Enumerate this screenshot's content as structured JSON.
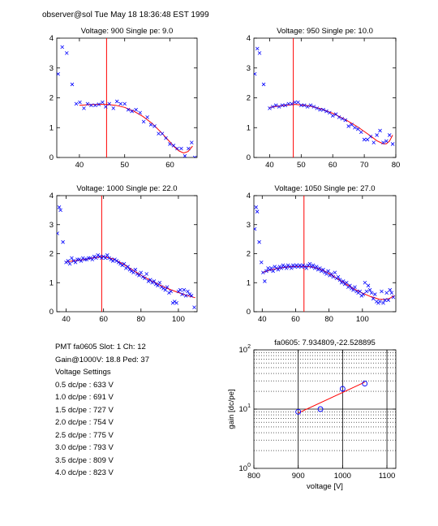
{
  "header": "observer@sol  Tue May 18 18:36:48 EST 1999",
  "info": {
    "pmt_line": "PMT fa0605 Slot: 1  Ch: 12",
    "gain_line": "Gain@1000V: 18.8  Ped: 37",
    "settings_title": "Voltage Settings",
    "settings": [
      "0.5 dc/pe : 633 V",
      "1.0 dc/pe : 691 V",
      "1.5 dc/pe : 727 V",
      "2.0 dc/pe : 754 V",
      "2.5 dc/pe : 775 V",
      "3.0 dc/pe : 793 V",
      "3.5 dc/pe : 809 V",
      "4.0 dc/pe : 823 V"
    ]
  },
  "colors": {
    "marker": "#0000ff",
    "fit": "#ff0000",
    "axis": "#000000"
  },
  "chart_data": [
    {
      "type": "scatter",
      "title": "Voltage: 900  Single pe: 9.0",
      "xlim": [
        35,
        66
      ],
      "ylim": [
        0,
        4
      ],
      "xticks": [
        40,
        50,
        60
      ],
      "yticks": [
        0,
        1,
        2,
        3,
        4
      ],
      "vline": 46,
      "points": [
        [
          35.3,
          2.8
        ],
        [
          36.2,
          3.7
        ],
        [
          37.2,
          3.5
        ],
        [
          38.4,
          2.45
        ],
        [
          39.3,
          1.8
        ],
        [
          40.1,
          1.85
        ],
        [
          41,
          1.65
        ],
        [
          41.8,
          1.8
        ],
        [
          42.6,
          1.75
        ],
        [
          43.5,
          1.75
        ],
        [
          44.3,
          1.78
        ],
        [
          45.1,
          1.85
        ],
        [
          45.8,
          1.7
        ],
        [
          46.6,
          1.8
        ],
        [
          47.5,
          1.65
        ],
        [
          48.3,
          1.88
        ],
        [
          49.1,
          1.8
        ],
        [
          50,
          1.8
        ],
        [
          50.8,
          1.6
        ],
        [
          51.6,
          1.55
        ],
        [
          52.5,
          1.6
        ],
        [
          53.4,
          1.5
        ],
        [
          54.2,
          1.2
        ],
        [
          55,
          1.35
        ],
        [
          55.8,
          1.1
        ],
        [
          56.6,
          1.05
        ],
        [
          57.5,
          0.8
        ],
        [
          58.3,
          0.8
        ],
        [
          59.1,
          0.65
        ],
        [
          60,
          0.45
        ],
        [
          60.8,
          0.4
        ],
        [
          61.6,
          0.3
        ],
        [
          62.5,
          0.3
        ],
        [
          63.3,
          0.05
        ],
        [
          64.1,
          0.3
        ],
        [
          64.8,
          0.5
        ],
        [
          65.5,
          0
        ]
      ],
      "fit": {
        "x": [
          40,
          42,
          44,
          46,
          48,
          50,
          52,
          54,
          56,
          58,
          60,
          61,
          62,
          63,
          64,
          65
        ],
        "y": [
          1.75,
          1.77,
          1.78,
          1.78,
          1.75,
          1.68,
          1.55,
          1.38,
          1.15,
          0.85,
          0.52,
          0.35,
          0.22,
          0.15,
          0.2,
          0.38
        ]
      }
    },
    {
      "type": "scatter",
      "title": "Voltage: 950  Single pe: 10.0",
      "xlim": [
        35,
        80
      ],
      "ylim": [
        0,
        4
      ],
      "xticks": [
        40,
        50,
        60,
        70,
        80
      ],
      "yticks": [
        0,
        1,
        2,
        3,
        4
      ],
      "vline": 47.5,
      "points": [
        [
          35.3,
          2.8
        ],
        [
          36.1,
          3.65
        ],
        [
          36.8,
          3.5
        ],
        [
          38.1,
          2.45
        ],
        [
          40,
          1.65
        ],
        [
          41,
          1.7
        ],
        [
          42,
          1.75
        ],
        [
          43,
          1.7
        ],
        [
          44,
          1.75
        ],
        [
          45,
          1.75
        ],
        [
          46,
          1.8
        ],
        [
          47,
          1.8
        ],
        [
          48,
          1.85
        ],
        [
          49,
          1.85
        ],
        [
          50,
          1.75
        ],
        [
          51,
          1.75
        ],
        [
          52,
          1.7
        ],
        [
          53,
          1.75
        ],
        [
          54,
          1.7
        ],
        [
          55,
          1.65
        ],
        [
          56,
          1.6
        ],
        [
          57,
          1.6
        ],
        [
          58,
          1.55
        ],
        [
          59,
          1.5
        ],
        [
          60,
          1.4
        ],
        [
          61,
          1.45
        ],
        [
          62,
          1.35
        ],
        [
          63,
          1.3
        ],
        [
          64,
          1.25
        ],
        [
          65,
          1.05
        ],
        [
          66,
          1.1
        ],
        [
          67,
          1.0
        ],
        [
          68,
          0.95
        ],
        [
          69,
          0.85
        ],
        [
          70,
          0.6
        ],
        [
          71,
          0.6
        ],
        [
          72,
          0.7
        ],
        [
          73,
          0.5
        ],
        [
          74,
          0.75
        ],
        [
          75,
          0.9
        ],
        [
          76,
          0.5
        ],
        [
          77,
          0.55
        ],
        [
          78,
          0.75
        ],
        [
          79,
          0.45
        ]
      ],
      "fit": {
        "x": [
          40,
          44,
          48,
          52,
          56,
          60,
          64,
          68,
          72,
          74,
          76,
          77,
          78,
          79
        ],
        "y": [
          1.68,
          1.74,
          1.78,
          1.74,
          1.64,
          1.48,
          1.27,
          1.02,
          0.72,
          0.56,
          0.46,
          0.46,
          0.55,
          0.75
        ]
      }
    },
    {
      "type": "scatter",
      "title": "Voltage: 1000  Single pe: 22.0",
      "xlim": [
        35,
        110
      ],
      "ylim": [
        0,
        4
      ],
      "xticks": [
        40,
        60,
        80,
        100
      ],
      "yticks": [
        0,
        1,
        2,
        3,
        4
      ],
      "vline": 59,
      "points": [
        [
          35.3,
          2.7
        ],
        [
          36.3,
          3.6
        ],
        [
          37,
          3.5
        ],
        [
          38.3,
          2.4
        ],
        [
          40,
          1.7
        ],
        [
          41,
          1.75
        ],
        [
          42,
          1.65
        ],
        [
          43,
          1.85
        ],
        [
          44,
          1.75
        ],
        [
          45,
          1.7
        ],
        [
          46,
          1.8
        ],
        [
          47,
          1.8
        ],
        [
          48,
          1.75
        ],
        [
          49,
          1.85
        ],
        [
          50,
          1.8
        ],
        [
          51,
          1.8
        ],
        [
          52,
          1.85
        ],
        [
          53,
          1.85
        ],
        [
          54,
          1.8
        ],
        [
          55,
          1.9
        ],
        [
          56,
          1.85
        ],
        [
          57,
          1.95
        ],
        [
          58,
          1.9
        ],
        [
          59,
          1.85
        ],
        [
          60,
          1.9
        ],
        [
          61,
          1.85
        ],
        [
          62,
          1.95
        ],
        [
          63,
          1.85
        ],
        [
          64,
          1.8
        ],
        [
          65,
          1.75
        ],
        [
          66,
          1.8
        ],
        [
          67,
          1.75
        ],
        [
          68,
          1.7
        ],
        [
          69,
          1.65
        ],
        [
          70,
          1.6
        ],
        [
          71,
          1.65
        ],
        [
          72,
          1.5
        ],
        [
          73,
          1.55
        ],
        [
          74,
          1.45
        ],
        [
          75,
          1.4
        ],
        [
          76,
          1.35
        ],
        [
          77,
          1.45
        ],
        [
          78,
          1.3
        ],
        [
          79,
          1.25
        ],
        [
          80,
          1.35
        ],
        [
          81,
          1.2
        ],
        [
          82,
          1.15
        ],
        [
          83,
          1.3
        ],
        [
          84,
          1.05
        ],
        [
          85,
          1.1
        ],
        [
          86,
          1.0
        ],
        [
          87,
          1.05
        ],
        [
          88,
          0.95
        ],
        [
          89,
          0.9
        ],
        [
          90,
          1.0
        ],
        [
          91,
          0.85
        ],
        [
          92,
          0.8
        ],
        [
          93,
          0.75
        ],
        [
          94,
          0.85
        ],
        [
          95,
          0.65
        ],
        [
          96,
          0.7
        ],
        [
          97,
          0.3
        ],
        [
          98,
          0.35
        ],
        [
          99,
          0.3
        ],
        [
          100,
          0.7
        ],
        [
          101,
          0.75
        ],
        [
          102,
          0.6
        ],
        [
          103,
          0.75
        ],
        [
          104,
          0.55
        ],
        [
          105,
          0.7
        ],
        [
          106,
          0.6
        ],
        [
          107,
          0.55
        ],
        [
          108.5,
          0.15
        ]
      ],
      "fit": {
        "x": [
          40,
          45,
          50,
          55,
          60,
          65,
          70,
          75,
          80,
          85,
          90,
          95,
          100,
          105,
          109
        ],
        "y": [
          1.72,
          1.76,
          1.8,
          1.86,
          1.9,
          1.82,
          1.66,
          1.46,
          1.26,
          1.08,
          0.92,
          0.78,
          0.66,
          0.55,
          0.48
        ]
      }
    },
    {
      "type": "scatter",
      "title": "Voltage: 1050  Single pe: 27.0",
      "xlim": [
        35,
        120
      ],
      "ylim": [
        0,
        4
      ],
      "xticks": [
        40,
        60,
        80,
        100
      ],
      "yticks": [
        0,
        1,
        2,
        3,
        4
      ],
      "vline": 65,
      "points": [
        [
          35.5,
          2.85
        ],
        [
          36.3,
          3.6
        ],
        [
          37,
          3.45
        ],
        [
          38.2,
          2.4
        ],
        [
          39.5,
          1.7
        ],
        [
          40.5,
          1.35
        ],
        [
          41.5,
          1.05
        ],
        [
          42.5,
          1.4
        ],
        [
          43.5,
          1.5
        ],
        [
          44.5,
          1.45
        ],
        [
          45.5,
          1.5
        ],
        [
          46.5,
          1.4
        ],
        [
          47.5,
          1.55
        ],
        [
          48.5,
          1.5
        ],
        [
          49.5,
          1.45
        ],
        [
          50.5,
          1.55
        ],
        [
          51.5,
          1.5
        ],
        [
          52.5,
          1.6
        ],
        [
          53.5,
          1.55
        ],
        [
          54.5,
          1.5
        ],
        [
          55.5,
          1.6
        ],
        [
          56.5,
          1.55
        ],
        [
          57.5,
          1.5
        ],
        [
          58.5,
          1.6
        ],
        [
          59.5,
          1.55
        ],
        [
          60.5,
          1.6
        ],
        [
          61.5,
          1.55
        ],
        [
          62.5,
          1.6
        ],
        [
          63.5,
          1.55
        ],
        [
          64.5,
          1.6
        ],
        [
          65.5,
          1.55
        ],
        [
          66.5,
          1.5
        ],
        [
          67.5,
          1.6
        ],
        [
          68.5,
          1.65
        ],
        [
          69.5,
          1.55
        ],
        [
          70.5,
          1.6
        ],
        [
          71.5,
          1.5
        ],
        [
          72.5,
          1.55
        ],
        [
          73.5,
          1.45
        ],
        [
          74.5,
          1.5
        ],
        [
          75.5,
          1.4
        ],
        [
          76.5,
          1.45
        ],
        [
          77.5,
          1.35
        ],
        [
          78.5,
          1.3
        ],
        [
          79.5,
          1.4
        ],
        [
          80.5,
          1.25
        ],
        [
          81.5,
          1.3
        ],
        [
          82.5,
          1.2
        ],
        [
          83.5,
          1.35
        ],
        [
          84.5,
          1.15
        ],
        [
          85.5,
          1.2
        ],
        [
          86.5,
          1.1
        ],
        [
          87.5,
          1.0
        ],
        [
          88.5,
          1.05
        ],
        [
          89.5,
          0.95
        ],
        [
          90.5,
          1.0
        ],
        [
          91.5,
          0.85
        ],
        [
          92.5,
          0.9
        ],
        [
          93.5,
          0.8
        ],
        [
          94.5,
          0.75
        ],
        [
          95.5,
          0.85
        ],
        [
          96.5,
          0.7
        ],
        [
          97.5,
          0.65
        ],
        [
          98.5,
          0.7
        ],
        [
          99.5,
          0.55
        ],
        [
          100.5,
          0.6
        ],
        [
          101.5,
          1.0
        ],
        [
          102.5,
          0.7
        ],
        [
          103.5,
          0.9
        ],
        [
          104.5,
          0.75
        ],
        [
          105.5,
          0.65
        ],
        [
          106.5,
          0.45
        ],
        [
          107.5,
          0.6
        ],
        [
          108.5,
          0.35
        ],
        [
          109.5,
          0.3
        ],
        [
          110.5,
          0.35
        ],
        [
          111.5,
          0.7
        ],
        [
          112.5,
          0.3
        ],
        [
          113.5,
          0.4
        ],
        [
          114.5,
          0.65
        ],
        [
          115.5,
          0.4
        ],
        [
          116.5,
          0.75
        ],
        [
          117.5,
          0.65
        ],
        [
          118.5,
          0.5
        ]
      ],
      "fit": {
        "x": [
          40,
          45,
          50,
          55,
          60,
          65,
          70,
          75,
          80,
          85,
          90,
          95,
          100,
          105,
          110,
          113,
          116,
          119
        ],
        "y": [
          1.35,
          1.44,
          1.5,
          1.54,
          1.56,
          1.56,
          1.54,
          1.46,
          1.32,
          1.14,
          0.96,
          0.78,
          0.64,
          0.52,
          0.43,
          0.42,
          0.45,
          0.55
        ]
      }
    },
    {
      "type": "line",
      "title": "fa0605: 7.934809,-22.528895",
      "xlabel": "voltage [V]",
      "ylabel": "gain [dc/pe]",
      "xlim": [
        800,
        1120
      ],
      "ylim": [
        1,
        100
      ],
      "yscale": "log",
      "xticks": [
        800,
        900,
        1000,
        1100
      ],
      "yticks": [
        {
          "value": 1,
          "base": "10",
          "exp": "0"
        },
        {
          "value": 10,
          "base": "10",
          "exp": "1"
        },
        {
          "value": 100,
          "base": "10",
          "exp": "2"
        }
      ],
      "grid": true,
      "points": [
        [
          900,
          9.0
        ],
        [
          950,
          10.0
        ],
        [
          1000,
          22.0
        ],
        [
          1050,
          27.0
        ]
      ],
      "fit": {
        "x": [
          900,
          1050
        ],
        "y": [
          8.6,
          28.5
        ]
      }
    }
  ]
}
